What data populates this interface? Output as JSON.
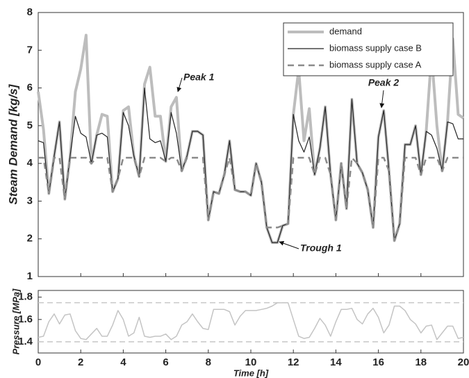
{
  "chart_data": [
    {
      "type": "line",
      "ylabel": "Steam Demand [kg/s]",
      "xlim": [
        0,
        20
      ],
      "xticks": [
        0,
        2,
        4,
        6,
        8,
        10,
        12,
        14,
        16,
        18,
        20
      ],
      "ylim": [
        1,
        8
      ],
      "yticks": [
        1,
        2,
        3,
        4,
        5,
        6,
        7,
        8
      ],
      "legend": "top-right",
      "x": [
        0,
        0.25,
        0.5,
        0.75,
        1,
        1.25,
        1.5,
        1.75,
        2,
        2.25,
        2.5,
        2.75,
        3,
        3.25,
        3.5,
        3.75,
        4,
        4.25,
        4.5,
        4.75,
        5,
        5.25,
        5.5,
        5.75,
        6,
        6.25,
        6.5,
        6.75,
        7,
        7.25,
        7.5,
        7.75,
        8,
        8.25,
        8.5,
        8.75,
        9,
        9.25,
        9.5,
        9.75,
        10,
        10.25,
        10.5,
        10.75,
        11,
        11.25,
        11.5,
        11.75,
        12,
        12.25,
        12.5,
        12.75,
        13,
        13.25,
        13.5,
        13.75,
        14,
        14.25,
        14.5,
        14.75,
        15,
        15.25,
        15.5,
        15.75,
        16,
        16.25,
        16.5,
        16.75,
        17,
        17.25,
        17.5,
        17.75,
        18,
        18.25,
        18.5,
        18.75,
        19,
        19.25,
        19.5,
        19.75,
        20
      ],
      "series": [
        {
          "name": "demand",
          "color": "#bdbdbd",
          "line_style": "solid",
          "values": [
            5.9,
            4.9,
            3.2,
            4.2,
            5.1,
            3.05,
            4.2,
            5.9,
            6.5,
            7.4,
            4.0,
            4.75,
            5.3,
            5.25,
            3.25,
            3.6,
            5.4,
            5.5,
            4.2,
            3.65,
            6.1,
            6.55,
            5.25,
            5.25,
            4.05,
            5.5,
            5.75,
            3.8,
            4.2,
            4.85,
            4.85,
            4.75,
            2.5,
            3.25,
            3.2,
            3.7,
            4.6,
            3.3,
            3.25,
            3.25,
            3.15,
            4.0,
            3.5,
            2.3,
            1.9,
            1.9,
            2.35,
            2.4,
            5.3,
            6.5,
            4.6,
            5.45,
            3.7,
            4.4,
            5.5,
            3.7,
            2.5,
            4.0,
            2.8,
            5.7,
            4.0,
            3.75,
            3.3,
            2.3,
            4.7,
            5.4,
            3.8,
            1.95,
            2.4,
            4.5,
            4.5,
            5.0,
            3.7,
            4.85,
            6.9,
            5.0,
            3.8,
            5.1,
            7.3,
            5.3,
            5.2
          ]
        },
        {
          "name": "biomass supply case B",
          "color": "#222222",
          "line_style": "solid",
          "values": [
            4.6,
            4.55,
            3.2,
            4.2,
            5.1,
            3.05,
            4.2,
            5.25,
            4.8,
            4.7,
            4.0,
            4.75,
            4.8,
            4.7,
            3.25,
            3.6,
            5.35,
            5.0,
            4.2,
            3.65,
            6.0,
            4.65,
            4.55,
            4.6,
            4.05,
            5.35,
            4.8,
            3.8,
            4.2,
            4.85,
            4.85,
            4.75,
            2.5,
            3.25,
            3.2,
            3.7,
            4.6,
            3.3,
            3.25,
            3.25,
            3.15,
            4.0,
            3.5,
            2.3,
            1.9,
            1.9,
            2.35,
            2.4,
            5.3,
            4.6,
            4.3,
            4.7,
            3.7,
            4.4,
            5.5,
            3.7,
            2.5,
            4.0,
            2.8,
            5.7,
            4.0,
            3.75,
            3.3,
            2.3,
            4.7,
            5.4,
            3.8,
            1.95,
            2.4,
            4.5,
            4.5,
            5.0,
            3.7,
            4.85,
            4.75,
            4.4,
            3.8,
            5.1,
            5.05,
            4.65,
            4.65
          ]
        },
        {
          "name": "biomass supply case A",
          "color": "#8a8a8a",
          "line_style": "dashed",
          "values": [
            4.15,
            4.15,
            3.2,
            4.15,
            4.15,
            3.05,
            4.15,
            4.15,
            4.15,
            4.15,
            4.0,
            4.15,
            4.15,
            4.15,
            3.25,
            3.6,
            4.15,
            4.15,
            4.15,
            3.65,
            4.15,
            4.15,
            4.15,
            4.15,
            4.05,
            4.15,
            4.15,
            3.8,
            4.15,
            4.15,
            4.15,
            4.15,
            2.5,
            3.25,
            3.2,
            3.7,
            4.15,
            3.3,
            3.25,
            3.25,
            3.15,
            4.0,
            3.5,
            2.3,
            2.3,
            2.3,
            2.35,
            2.4,
            4.15,
            4.15,
            4.15,
            4.15,
            3.7,
            4.15,
            4.15,
            3.7,
            2.5,
            4.0,
            2.8,
            4.15,
            4.0,
            3.75,
            3.3,
            2.3,
            4.15,
            4.15,
            3.8,
            1.95,
            2.4,
            4.15,
            4.15,
            4.15,
            3.7,
            4.15,
            4.15,
            4.15,
            3.8,
            4.15,
            4.15,
            4.15,
            4.15
          ]
        }
      ],
      "annotations": [
        "Peak 1",
        "Peak 2",
        "Trough 1"
      ]
    },
    {
      "type": "line",
      "ylabel": "Pressure  [MPa]",
      "xlabel": "Time [h]",
      "xlim": [
        0,
        20
      ],
      "xticks": [
        0,
        2,
        4,
        6,
        8,
        10,
        12,
        14,
        16,
        18,
        20
      ],
      "ylim": [
        1.3,
        1.86
      ],
      "yticks": [
        1.4,
        1.6,
        1.8
      ],
      "reference_lines": [
        1.75,
        1.4
      ],
      "x": [
        0,
        0.25,
        0.5,
        0.75,
        1,
        1.25,
        1.5,
        1.75,
        2,
        2.25,
        2.5,
        2.75,
        3,
        3.25,
        3.5,
        3.75,
        4,
        4.25,
        4.5,
        4.75,
        5,
        5.25,
        5.5,
        5.75,
        6,
        6.25,
        6.5,
        6.75,
        7,
        7.25,
        7.5,
        7.75,
        8,
        8.25,
        8.5,
        8.75,
        9,
        9.25,
        9.5,
        9.75,
        10,
        10.25,
        10.5,
        10.75,
        11,
        11.25,
        11.5,
        11.75,
        12,
        12.25,
        12.5,
        12.75,
        13,
        13.25,
        13.5,
        13.75,
        14,
        14.25,
        14.5,
        14.75,
        15,
        15.25,
        15.5,
        15.75,
        16,
        16.25,
        16.5,
        16.75,
        17,
        17.25,
        17.5,
        17.75,
        18,
        18.25,
        18.5,
        18.75,
        19,
        19.25,
        19.5,
        19.75,
        20
      ],
      "series": [
        {
          "color": "#c4c4c4",
          "line_style": "solid",
          "values": [
            1.44,
            1.45,
            1.58,
            1.65,
            1.56,
            1.64,
            1.65,
            1.5,
            1.43,
            1.42,
            1.47,
            1.52,
            1.45,
            1.45,
            1.55,
            1.68,
            1.6,
            1.45,
            1.48,
            1.62,
            1.45,
            1.44,
            1.45,
            1.45,
            1.47,
            1.42,
            1.45,
            1.55,
            1.58,
            1.65,
            1.58,
            1.52,
            1.51,
            1.69,
            1.69,
            1.69,
            1.67,
            1.55,
            1.63,
            1.68,
            1.68,
            1.68,
            1.69,
            1.7,
            1.72,
            1.75,
            1.75,
            1.75,
            1.6,
            1.45,
            1.43,
            1.44,
            1.52,
            1.61,
            1.55,
            1.45,
            1.58,
            1.69,
            1.69,
            1.7,
            1.6,
            1.56,
            1.65,
            1.7,
            1.62,
            1.48,
            1.55,
            1.72,
            1.72,
            1.68,
            1.6,
            1.56,
            1.48,
            1.54,
            1.55,
            1.42,
            1.48,
            1.54,
            1.54,
            1.43,
            1.44
          ]
        }
      ]
    }
  ]
}
